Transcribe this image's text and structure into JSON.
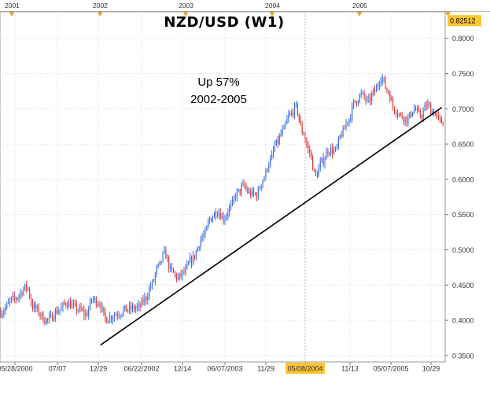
{
  "chart_data": {
    "type": "candlestick",
    "title": "NZD/USD (W1)",
    "annotations": [
      "Up 57%",
      "2002-2005"
    ],
    "price_axis": {
      "ylim": [
        0.337,
        0.8315
      ],
      "ticks": [
        "0.8000",
        "0.7500",
        "0.7000",
        "0.6500",
        "0.6000",
        "0.5500",
        "0.5000",
        "0.4500",
        "0.4000",
        "0.3500"
      ],
      "current_price_label": "0.82512"
    },
    "year_axis": {
      "labels": [
        "2001",
        "2002",
        "2003",
        "2004",
        "2005"
      ]
    },
    "date_axis": {
      "labels": [
        "05/28/2000",
        "07/07",
        "12/29",
        "06/22/2002",
        "12/14",
        "06/07/2003",
        "11/29",
        "05/08/2004",
        "11/13",
        "05/07/2005",
        "10/29"
      ],
      "highlighted": "05/08/2004"
    },
    "trendline": {
      "start": {
        "date": "2001-08",
        "price": 0.365
      },
      "end": {
        "date": "2005-12",
        "price": 0.702
      }
    },
    "price_path": [
      [
        "2000-05",
        0.412
      ],
      [
        "2000-07",
        0.43
      ],
      [
        "2000-09",
        0.447
      ],
      [
        "2000-10",
        0.418
      ],
      [
        "2000-12",
        0.4
      ],
      [
        "2001-02",
        0.415
      ],
      [
        "2001-03",
        0.425
      ],
      [
        "2001-05",
        0.415
      ],
      [
        "2001-06",
        0.408
      ],
      [
        "2001-07",
        0.43
      ],
      [
        "2001-08",
        0.425
      ],
      [
        "2001-09",
        0.402
      ],
      [
        "2001-11",
        0.41
      ],
      [
        "2001-12",
        0.415
      ],
      [
        "2002-02",
        0.418
      ],
      [
        "2002-03",
        0.43
      ],
      [
        "2002-04",
        0.45
      ],
      [
        "2002-05",
        0.475
      ],
      [
        "2002-06",
        0.495
      ],
      [
        "2002-07",
        0.47
      ],
      [
        "2002-08",
        0.46
      ],
      [
        "2002-09",
        0.468
      ],
      [
        "2002-10",
        0.485
      ],
      [
        "2002-12",
        0.52
      ],
      [
        "2003-01",
        0.545
      ],
      [
        "2003-02",
        0.555
      ],
      [
        "2003-03",
        0.545
      ],
      [
        "2003-04",
        0.56
      ],
      [
        "2003-05",
        0.58
      ],
      [
        "2003-06",
        0.59
      ],
      [
        "2003-07",
        0.58
      ],
      [
        "2003-08",
        0.578
      ],
      [
        "2003-09",
        0.6
      ],
      [
        "2003-10",
        0.625
      ],
      [
        "2003-11",
        0.65
      ],
      [
        "2003-12",
        0.668
      ],
      [
        "2004-01",
        0.69
      ],
      [
        "2004-02",
        0.702
      ],
      [
        "2004-03",
        0.668
      ],
      [
        "2004-04",
        0.64
      ],
      [
        "2004-05",
        0.605
      ],
      [
        "2004-06",
        0.625
      ],
      [
        "2004-07",
        0.642
      ],
      [
        "2004-08",
        0.64
      ],
      [
        "2004-09",
        0.665
      ],
      [
        "2004-10",
        0.685
      ],
      [
        "2004-11",
        0.71
      ],
      [
        "2004-12",
        0.72
      ],
      [
        "2005-01",
        0.71
      ],
      [
        "2005-02",
        0.725
      ],
      [
        "2005-03",
        0.745
      ],
      [
        "2005-04",
        0.725
      ],
      [
        "2005-05",
        0.7
      ],
      [
        "2005-06",
        0.69
      ],
      [
        "2005-07",
        0.685
      ],
      [
        "2005-08",
        0.7
      ],
      [
        "2005-09",
        0.69
      ],
      [
        "2005-10",
        0.705
      ],
      [
        "2005-11",
        0.695
      ],
      [
        "2005-12",
        0.682
      ]
    ],
    "colors": {
      "up": "#3a6fe6",
      "down": "#d83a3a",
      "trendline": "#000000",
      "grid": "#dcdcdc",
      "current_price_box": "#ffc52f",
      "highlight_box": "#ffc52f",
      "year_marker": "#f0a020",
      "axis_text": "#333333"
    }
  }
}
